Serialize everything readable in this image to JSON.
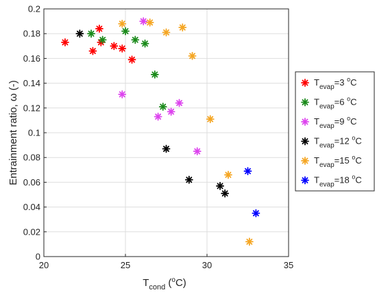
{
  "chart_data": {
    "type": "scatter",
    "xlabel": {
      "main": "T",
      "sub": "cond",
      "pre": " (",
      "sup": "o",
      "post": "C)"
    },
    "ylabel": "Entrainment ratio, ω (-)",
    "xlim": [
      20,
      35
    ],
    "ylim": [
      0,
      0.2
    ],
    "xticks": [
      "20",
      "25",
      "30",
      "35"
    ],
    "yticks": [
      "0",
      "0.02",
      "0.04",
      "0.06",
      "0.08",
      "0.1",
      "0.12",
      "0.14",
      "0.16",
      "0.18",
      "0.2"
    ],
    "grid": true,
    "legend_position": "right",
    "marker": "asterisk",
    "series": [
      {
        "name": {
          "main": "T",
          "sub": "evap",
          "value": "=3 ",
          "sup": "o",
          "unit": "C"
        },
        "color": "#ff0000",
        "points": [
          [
            21.3,
            0.173
          ],
          [
            23.0,
            0.166
          ],
          [
            23.4,
            0.184
          ],
          [
            23.5,
            0.173
          ],
          [
            24.3,
            0.17
          ],
          [
            24.8,
            0.168
          ],
          [
            25.4,
            0.159
          ]
        ]
      },
      {
        "name": {
          "main": "T",
          "sub": "evap",
          "value": "=6 ",
          "sup": "o",
          "unit": "C"
        },
        "color": "#1a8a1a",
        "points": [
          [
            22.9,
            0.18
          ],
          [
            23.6,
            0.175
          ],
          [
            25.0,
            0.182
          ],
          [
            25.6,
            0.175
          ],
          [
            26.2,
            0.172
          ],
          [
            26.8,
            0.147
          ],
          [
            27.3,
            0.121
          ]
        ]
      },
      {
        "name": {
          "main": "T",
          "sub": "evap",
          "value": "=9 ",
          "sup": "o",
          "unit": "C"
        },
        "color": "#dd44ee",
        "points": [
          [
            24.8,
            0.131
          ],
          [
            26.1,
            0.19
          ],
          [
            27.0,
            0.113
          ],
          [
            27.8,
            0.117
          ],
          [
            28.3,
            0.124
          ],
          [
            29.4,
            0.085
          ]
        ]
      },
      {
        "name": {
          "main": "T",
          "sub": "evap",
          "value": "=12 ",
          "sup": "o",
          "unit": "C"
        },
        "color": "#000000",
        "points": [
          [
            22.2,
            0.18
          ],
          [
            27.5,
            0.087
          ],
          [
            28.9,
            0.062
          ],
          [
            30.8,
            0.057
          ],
          [
            31.1,
            0.051
          ]
        ]
      },
      {
        "name": {
          "main": "T",
          "sub": "evap",
          "value": "=15 ",
          "sup": "o",
          "unit": "C"
        },
        "color": "#f5a623",
        "points": [
          [
            24.8,
            0.188
          ],
          [
            26.5,
            0.189
          ],
          [
            27.5,
            0.181
          ],
          [
            28.5,
            0.185
          ],
          [
            29.1,
            0.162
          ],
          [
            30.2,
            0.111
          ],
          [
            31.3,
            0.066
          ],
          [
            32.6,
            0.012
          ]
        ]
      },
      {
        "name": {
          "main": "T",
          "sub": "evap",
          "value": "=18 ",
          "sup": "o",
          "unit": "C"
        },
        "color": "#0000ff",
        "points": [
          [
            32.5,
            0.069
          ],
          [
            33.0,
            0.035
          ]
        ]
      }
    ]
  }
}
